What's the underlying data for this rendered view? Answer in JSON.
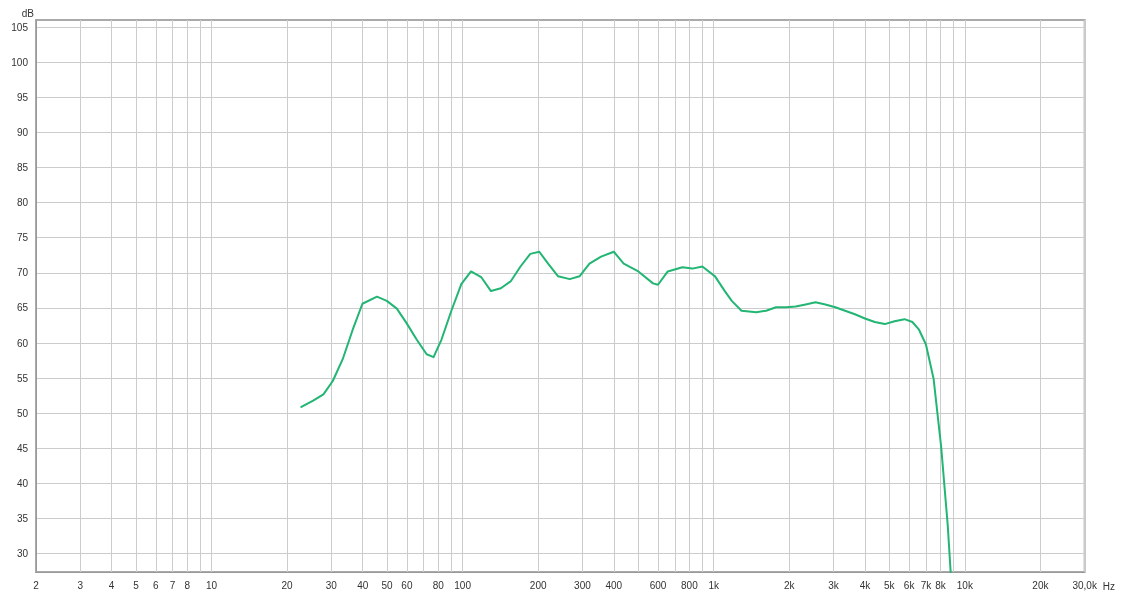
{
  "chart_data": {
    "type": "line",
    "xlabel": "Hz",
    "ylabel": "dB",
    "log": "x",
    "grid": true,
    "marker": "none",
    "line_style": "solid",
    "xlim": [
      2,
      30000
    ],
    "ylim": [
      27.4,
      106
    ],
    "xticks": [
      2,
      3,
      4,
      5,
      6,
      7,
      8,
      {
        "value": 9,
        "label": null
      },
      10,
      20,
      30,
      40,
      50,
      60,
      {
        "value": 70,
        "label": null
      },
      80,
      {
        "value": 90,
        "label": null
      },
      100,
      200,
      300,
      400,
      {
        "value": 500,
        "label": null
      },
      600,
      {
        "value": 700,
        "label": null
      },
      800,
      {
        "value": 900,
        "label": null
      },
      {
        "value": 1000,
        "label": "1k"
      },
      {
        "value": 2000,
        "label": "2k"
      },
      {
        "value": 3000,
        "label": "3k"
      },
      {
        "value": 4000,
        "label": "4k"
      },
      {
        "value": 5000,
        "label": "5k"
      },
      {
        "value": 6000,
        "label": "6k"
      },
      {
        "value": 7000,
        "label": "7k"
      },
      {
        "value": 8000,
        "label": "8k"
      },
      {
        "value": 9000,
        "label": null
      },
      {
        "value": 10000,
        "label": "10k"
      },
      {
        "value": 20000,
        "label": "20k"
      },
      {
        "value": 30000,
        "label": "30,0k"
      }
    ],
    "yticks": [
      30,
      35,
      40,
      45,
      50,
      55,
      60,
      65,
      70,
      75,
      80,
      85,
      90,
      95,
      100,
      105
    ],
    "series": [
      {
        "color": "#22b573",
        "x": [
          22.8,
          25.4,
          27.9,
          30.4,
          33.3,
          36.5,
          39.9,
          45.6,
          49.9,
          54.7,
          59.9,
          65.6,
          71.9,
          76.6,
          82.4,
          90.2,
          98.8,
          108,
          118.5,
          129.7,
          142,
          155.5,
          170,
          186,
          202,
          219,
          240,
          267,
          292,
          320,
          356,
          400,
          438,
          501,
          573,
          600,
          656,
          750,
          822,
          901,
          1012,
          1107,
          1180,
          1290,
          1477,
          1617,
          1770,
          1938,
          2120,
          2323,
          2543,
          2784,
          3050,
          3336,
          3650,
          4000,
          4380,
          4800,
          5250,
          5750,
          6180,
          6570,
          7000,
          7510,
          8050,
          8550,
          8780
        ],
        "values": [
          50.9,
          51.8,
          52.7,
          54.6,
          57.7,
          61.9,
          65.6,
          66.6,
          66.0,
          64.9,
          62.8,
          60.5,
          58.4,
          58.0,
          60.5,
          64.6,
          68.4,
          70.2,
          69.4,
          67.4,
          67.8,
          68.8,
          70.9,
          72.7,
          73.0,
          71.3,
          69.5,
          69.1,
          69.5,
          71.3,
          72.3,
          73.0,
          71.3,
          70.2,
          68.5,
          68.3,
          70.2,
          70.8,
          70.6,
          70.9,
          69.5,
          67.4,
          66.0,
          64.6,
          64.4,
          64.6,
          65.1,
          65.1,
          65.2,
          65.5,
          65.8,
          65.5,
          65.1,
          64.6,
          64.1,
          63.5,
          63.0,
          62.7,
          63.1,
          63.4,
          63.0,
          61.9,
          59.8,
          54.9,
          45.2,
          34.0,
          27.4
        ]
      }
    ]
  }
}
